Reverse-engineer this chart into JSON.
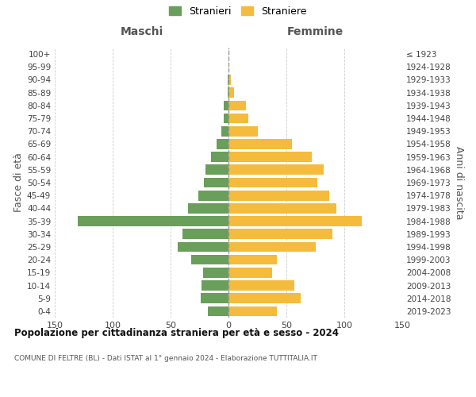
{
  "age_groups": [
    "0-4",
    "5-9",
    "10-14",
    "15-19",
    "20-24",
    "25-29",
    "30-34",
    "35-39",
    "40-44",
    "45-49",
    "50-54",
    "55-59",
    "60-64",
    "65-69",
    "70-74",
    "75-79",
    "80-84",
    "85-89",
    "90-94",
    "95-99",
    "100+"
  ],
  "birth_years": [
    "2019-2023",
    "2014-2018",
    "2009-2013",
    "2004-2008",
    "1999-2003",
    "1994-1998",
    "1989-1993",
    "1984-1988",
    "1979-1983",
    "1974-1978",
    "1969-1973",
    "1964-1968",
    "1959-1963",
    "1954-1958",
    "1949-1953",
    "1944-1948",
    "1939-1943",
    "1934-1938",
    "1929-1933",
    "1924-1928",
    "≤ 1923"
  ],
  "maschi": [
    18,
    24,
    23,
    22,
    32,
    44,
    40,
    130,
    35,
    26,
    21,
    20,
    15,
    10,
    6,
    4,
    4,
    1,
    1,
    0,
    0
  ],
  "femmine": [
    42,
    62,
    57,
    38,
    42,
    75,
    90,
    115,
    93,
    87,
    77,
    82,
    72,
    55,
    25,
    17,
    15,
    5,
    2,
    0,
    0
  ],
  "male_color": "#6a9e5b",
  "female_color": "#f5bb3c",
  "legend_male": "Stranieri",
  "legend_female": "Straniere",
  "title_maschi": "Maschi",
  "title_femmine": "Femmine",
  "ylabel_left": "Fasce di età",
  "ylabel_right": "Anni di nascita",
  "xlim": 150,
  "main_title": "Popolazione per cittadinanza straniera per età e sesso - 2024",
  "subtitle": "COMUNE DI FELTRE (BL) - Dati ISTAT al 1° gennaio 2024 - Elaborazione TUTTITALIA.IT",
  "background_color": "#ffffff",
  "grid_color": "#cccccc",
  "bar_height": 0.78
}
